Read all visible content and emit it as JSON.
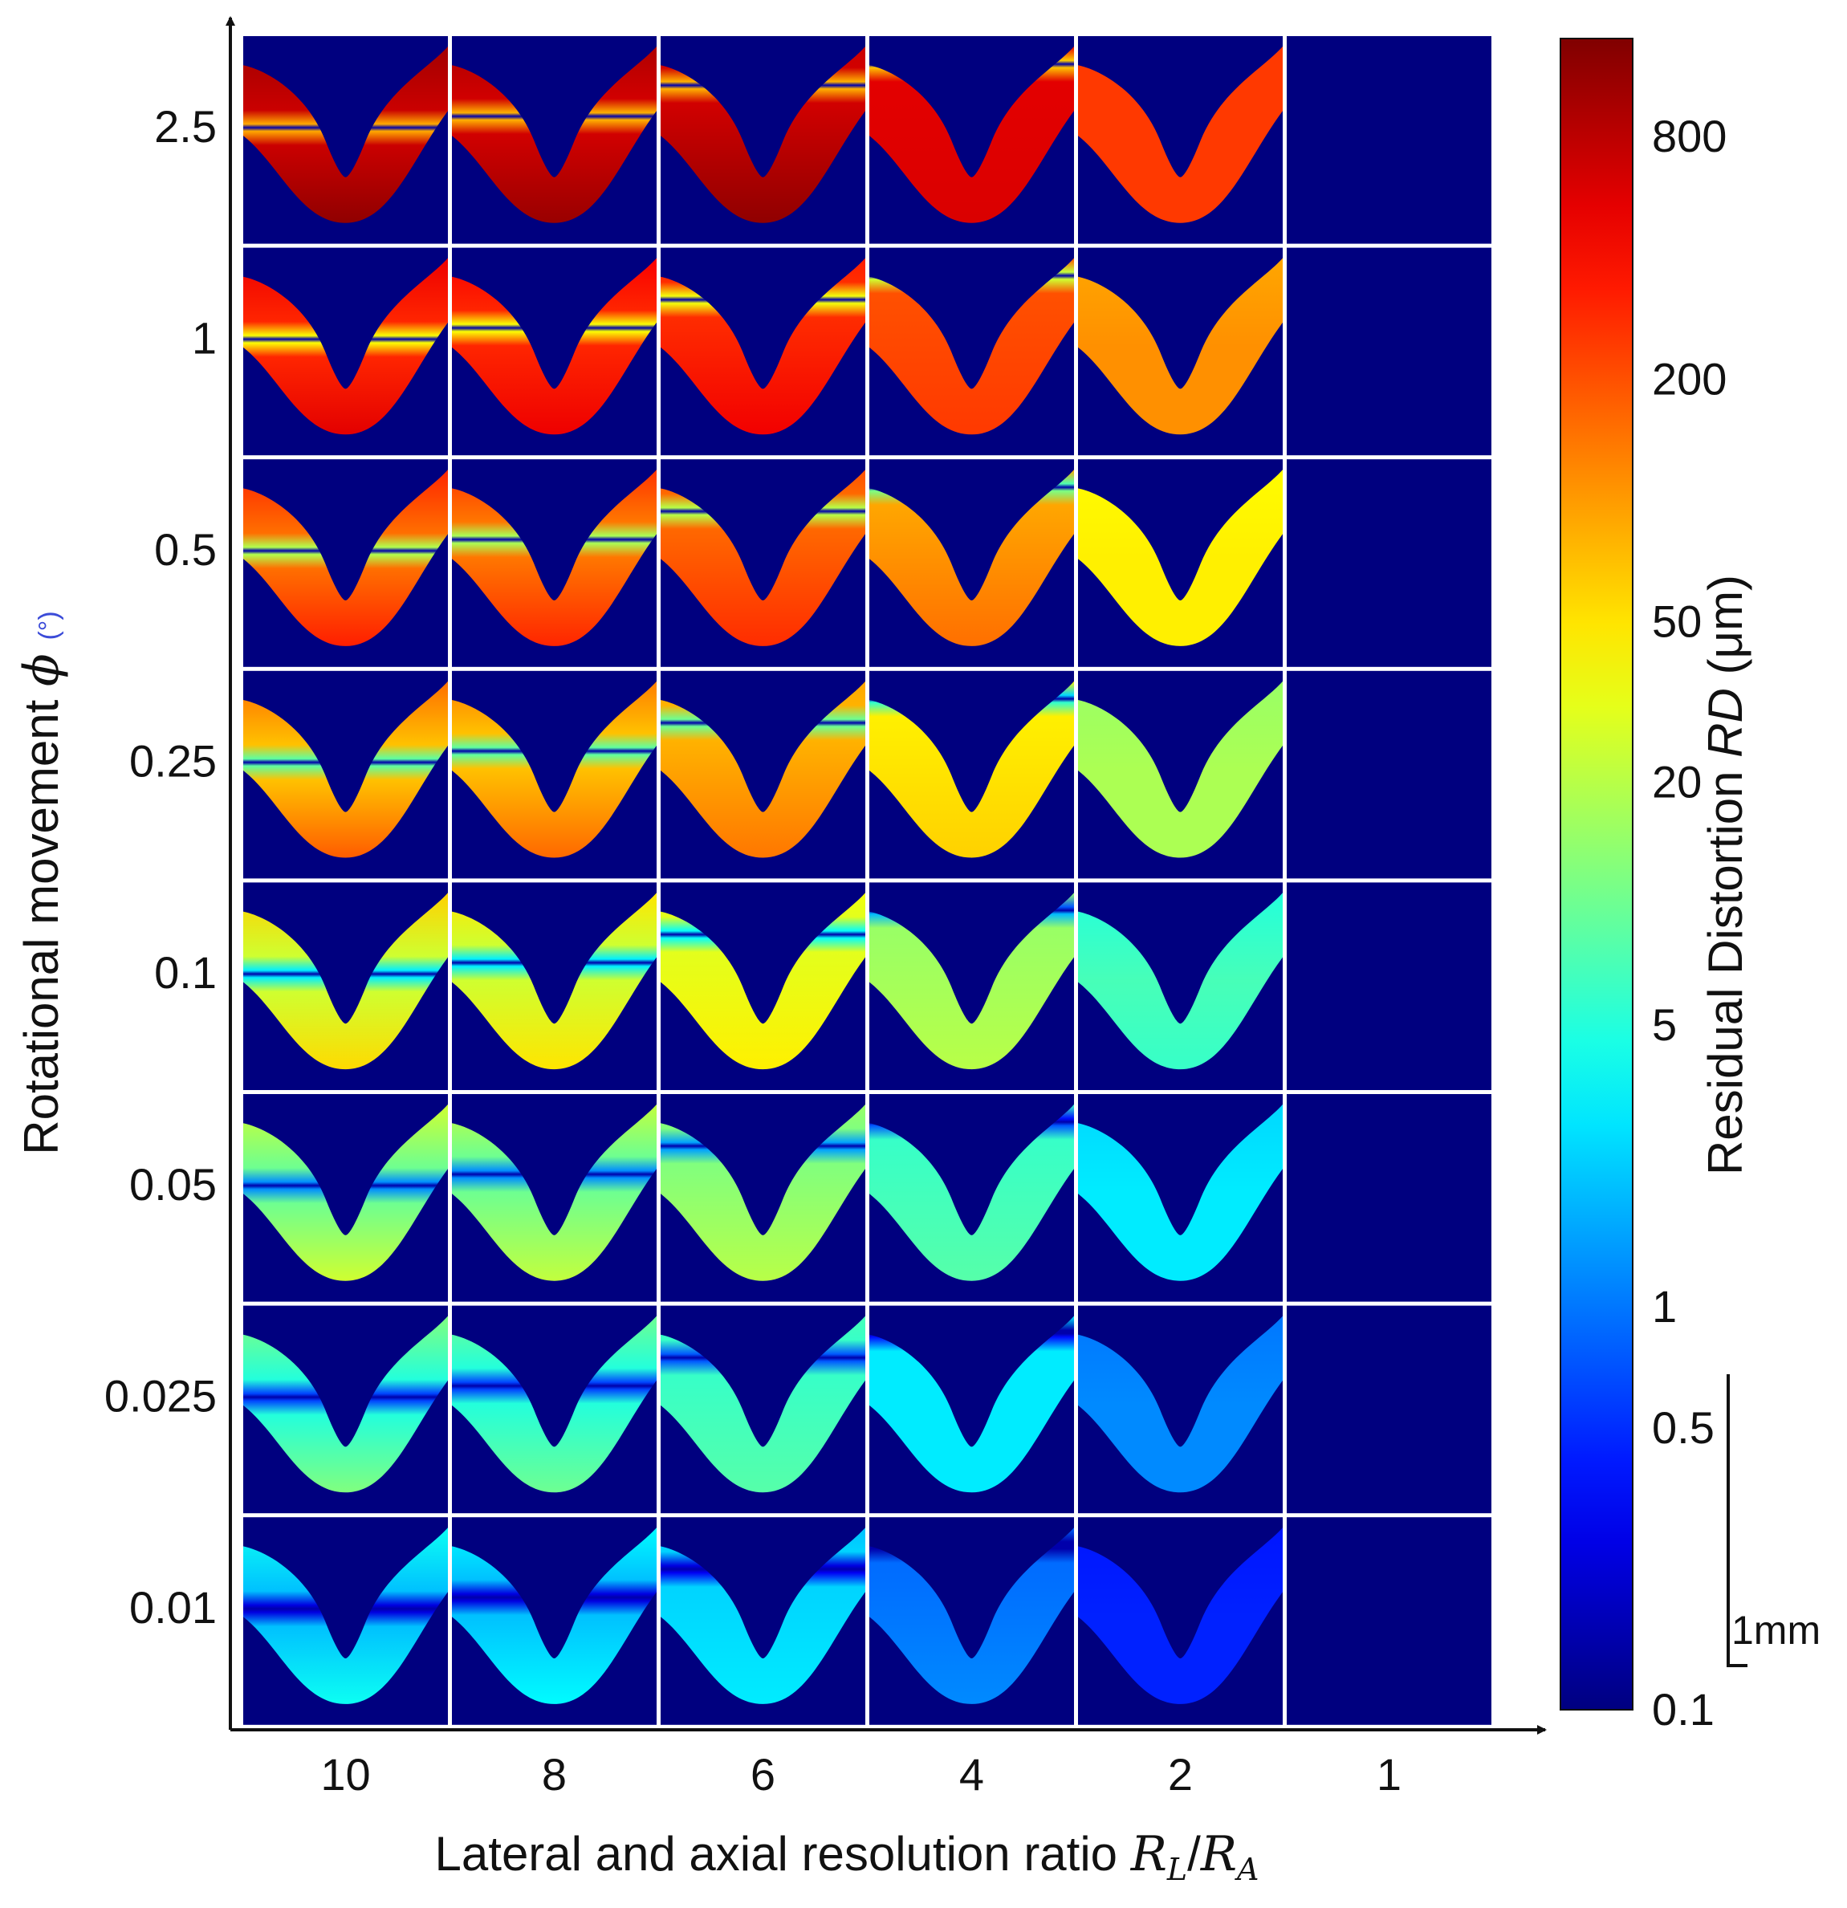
{
  "chart_data": {
    "type": "heatmap",
    "xlabel": "Lateral and axial resolution ratio",
    "xlabel_symbol": "R",
    "xlabel_sub_l": "L",
    "xlabel_sub_a": "A",
    "xlabel_slash": "/",
    "ylabel": "Rotational movement",
    "ylabel_symbol": "ϕ",
    "ylabel_unit": "(°)",
    "x_ticks": [
      "10",
      "8",
      "6",
      "4",
      "2",
      "1"
    ],
    "y_ticks": [
      "2.5",
      "1",
      "0.5",
      "0.25",
      "0.1",
      "0.05",
      "0.025",
      "0.01"
    ],
    "colorbar": {
      "label": "Residual Distortion",
      "label_symbol": "RD",
      "label_unit": "(μm)",
      "scale": "log",
      "range": [
        0.1,
        1400
      ],
      "ticks": [
        "800",
        "200",
        "50",
        "20",
        "5",
        "1",
        "0.5",
        "0.1"
      ],
      "tick_values": [
        800,
        200,
        50,
        20,
        5,
        1,
        0.5,
        0.1
      ]
    },
    "scale_bar": {
      "label": "1mm"
    },
    "cells": {
      "description_values_um": "approximate residual distortion at bottom, middle and top of each shape",
      "columns": [
        "10",
        "8",
        "6",
        "4",
        "2",
        "1"
      ],
      "rows": [
        {
          "phi": "2.5",
          "bottom": [
            1200,
            1100,
            1200,
            600,
            250,
            null
          ],
          "mid": [
            700,
            650,
            650,
            550,
            250,
            null
          ],
          "top": [
            1000,
            900,
            700,
            500,
            250,
            null
          ],
          "band": [
            0.5,
            0.42,
            0.2,
            0.05,
            null,
            null
          ]
        },
        {
          "phi": "1",
          "bottom": [
            550,
            500,
            480,
            250,
            110,
            null
          ],
          "mid": [
            300,
            300,
            280,
            200,
            110,
            null
          ],
          "top": [
            500,
            450,
            320,
            180,
            90,
            null
          ],
          "band": [
            0.5,
            0.42,
            0.22,
            0.05,
            null,
            null
          ]
        },
        {
          "phi": "0.5",
          "bottom": [
            320,
            300,
            280,
            150,
            45,
            null
          ],
          "mid": [
            150,
            140,
            160,
            90,
            45,
            null
          ],
          "top": [
            300,
            260,
            200,
            60,
            40,
            null
          ],
          "band": [
            0.5,
            0.42,
            0.22,
            0.05,
            null,
            null
          ]
        },
        {
          "phi": "0.25",
          "bottom": [
            180,
            160,
            140,
            60,
            18,
            null
          ],
          "mid": [
            70,
            70,
            80,
            45,
            18,
            null
          ],
          "top": [
            150,
            130,
            90,
            20,
            15,
            null
          ],
          "band": [
            0.5,
            0.42,
            0.22,
            0.05,
            null,
            null
          ]
        },
        {
          "phi": "0.1",
          "bottom": [
            55,
            50,
            45,
            20,
            6,
            null
          ],
          "mid": [
            25,
            25,
            30,
            15,
            7,
            null
          ],
          "top": [
            60,
            50,
            35,
            6,
            5,
            null
          ],
          "band": [
            0.5,
            0.42,
            0.22,
            0.05,
            null,
            null
          ]
        },
        {
          "phi": "0.05",
          "bottom": [
            25,
            22,
            20,
            8,
            3,
            null
          ],
          "mid": [
            10,
            10,
            12,
            6,
            3,
            null
          ],
          "top": [
            25,
            22,
            15,
            3,
            2.5,
            null
          ],
          "band": [
            0.5,
            0.42,
            0.22,
            0.05,
            null,
            null
          ]
        },
        {
          "phi": "0.025",
          "bottom": [
            12,
            10,
            8,
            3,
            1.2,
            null
          ],
          "mid": [
            5,
            5,
            6,
            3,
            1.2,
            null
          ],
          "top": [
            12,
            10,
            7,
            1,
            1,
            null
          ],
          "band": [
            0.5,
            0.42,
            0.22,
            0.05,
            null,
            null
          ]
        },
        {
          "phi": "0.01",
          "bottom": [
            4,
            3.5,
            3,
            1.2,
            0.45,
            null
          ],
          "mid": [
            2,
            2,
            2.4,
            0.9,
            0.45,
            null
          ],
          "top": [
            4,
            3.5,
            2,
            0.45,
            0.4,
            null
          ],
          "band": [
            0.5,
            0.42,
            0.22,
            0.05,
            null,
            null
          ]
        }
      ]
    }
  }
}
